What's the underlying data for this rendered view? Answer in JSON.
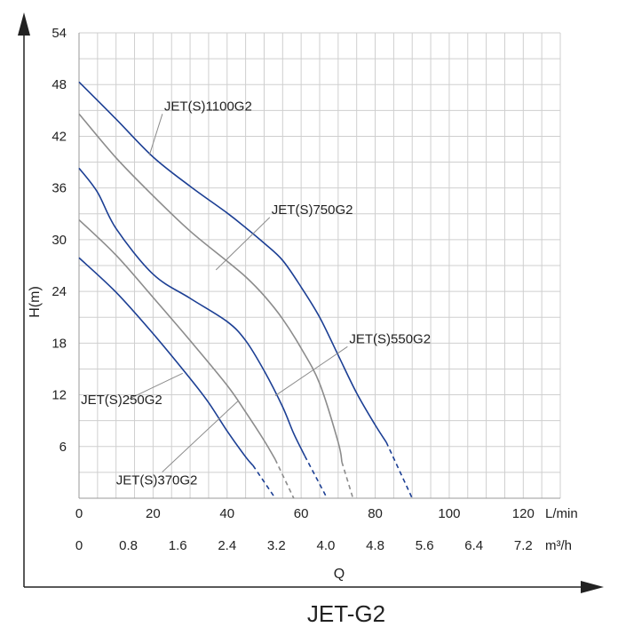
{
  "chart_data": {
    "type": "line",
    "title": "JET-G2",
    "xlabel": "Q",
    "ylabel": "H(m)",
    "x_unit_primary": "L/min",
    "x_unit_secondary": "m³/h",
    "xlim": [
      0,
      130
    ],
    "ylim": [
      0,
      54
    ],
    "x_ticks_primary": [
      "0",
      "20",
      "40",
      "60",
      "80",
      "100",
      "120"
    ],
    "x_ticks_secondary": [
      "0",
      "0.8",
      "1.6",
      "2.4",
      "3.2",
      "4.0",
      "4.8",
      "5.6",
      "6.4",
      "7.2"
    ],
    "y_ticks": [
      "6",
      "12",
      "18",
      "24",
      "30",
      "36",
      "42",
      "48",
      "54"
    ],
    "grid": true,
    "series": [
      {
        "name": "JET(S)1100G2",
        "color": "#1c3f94",
        "x": [
          0,
          10,
          20,
          30,
          40,
          45,
          50,
          55,
          60,
          65,
          70,
          75,
          80,
          83
        ],
        "y": [
          48.3,
          44,
          39.6,
          36.2,
          33.1,
          31.4,
          29.6,
          27.6,
          24.5,
          21,
          16.6,
          12.2,
          8.5,
          6.5
        ],
        "dashed_x": [
          83,
          90
        ],
        "dashed_y": [
          6.5,
          0
        ]
      },
      {
        "name": "JET(S)750G2",
        "color": "#8c8c8c",
        "x": [
          0,
          10,
          20,
          30,
          40,
          45,
          50,
          55,
          60,
          65,
          70,
          71
        ],
        "y": [
          44.6,
          39.5,
          35.1,
          31,
          27.5,
          25.7,
          23.5,
          20.8,
          17.4,
          13.3,
          6.5,
          4.2
        ],
        "dashed_x": [
          71,
          74
        ],
        "dashed_y": [
          4.2,
          0
        ]
      },
      {
        "name": "JET(S)550G2",
        "color": "#1c3f94",
        "x": [
          0,
          5,
          10,
          20,
          30,
          40,
          45,
          50,
          55,
          58,
          61
        ],
        "y": [
          38.3,
          35.5,
          31.3,
          26,
          23.2,
          20.5,
          18.3,
          14.8,
          10.6,
          7.5,
          4.9
        ],
        "dashed_x": [
          61,
          67
        ],
        "dashed_y": [
          4.9,
          0
        ]
      },
      {
        "name": "JET(S)370G2",
        "color": "#8c8c8c",
        "x": [
          0,
          10,
          20,
          30,
          40,
          45,
          50,
          53
        ],
        "y": [
          32.3,
          28.2,
          23.3,
          18.3,
          13.1,
          10,
          6.7,
          4.5
        ],
        "dashed_x": [
          53,
          58
        ],
        "dashed_y": [
          4.5,
          0
        ]
      },
      {
        "name": "JET(S)250G2",
        "color": "#1c3f94",
        "x": [
          0,
          10,
          20,
          30,
          35,
          40,
          45,
          47
        ],
        "y": [
          27.9,
          23.9,
          19.1,
          13.9,
          11.1,
          7.8,
          4.8,
          3.8
        ],
        "dashed_x": [
          47,
          53
        ],
        "dashed_y": [
          3.8,
          0
        ]
      }
    ],
    "annotations": [
      {
        "text": "JET(S)1100G2",
        "series": "JET(S)1100G2",
        "label_x": 23,
        "label_y": 45,
        "point_x": 19,
        "point_y": 39.8
      },
      {
        "text": "JET(S)750G2",
        "series": "JET(S)750G2",
        "label_x": 52,
        "label_y": 33,
        "point_x": 37,
        "point_y": 26.5
      },
      {
        "text": "JET(S)550G2",
        "series": "JET(S)550G2",
        "label_x": 73,
        "label_y": 18,
        "point_x": 53,
        "point_y": 11.9
      },
      {
        "text": "JET(S)370G2",
        "series": "JET(S)370G2",
        "label_x": 10,
        "label_y": 1.6,
        "point_x": 43,
        "point_y": 11.3
      },
      {
        "text": "JET(S)250G2",
        "series": "JET(S)250G2",
        "label_x": 0.5,
        "label_y": 10.9,
        "point_x": 28,
        "point_y": 14.5
      }
    ]
  }
}
